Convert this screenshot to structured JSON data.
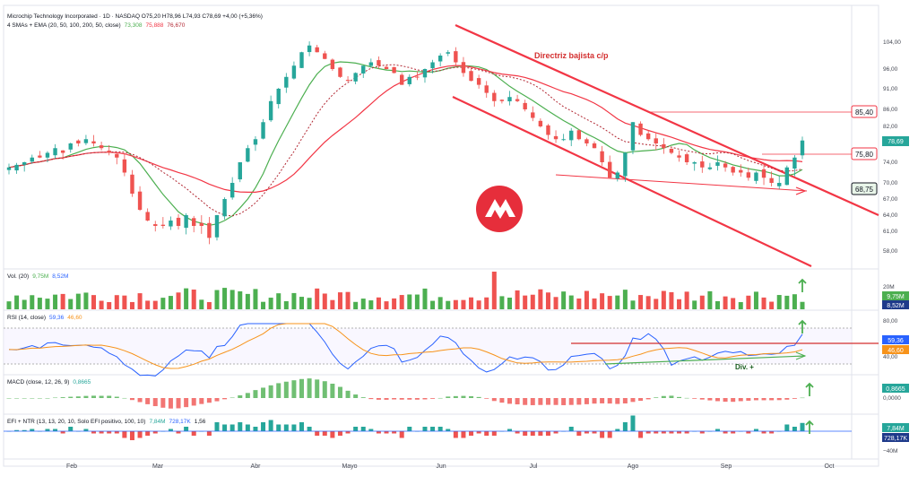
{
  "header": {
    "title_line": "Microchip Technology Incorporated · 1D · NASDAQ  O75,20  H78,96  L74,93  C78,69  +4,00 (+5,36%)",
    "ma_line": "4 SMAs + EMA (20, 50, 100, 200, 50, close)",
    "ma_vals": [
      "73,308",
      "75,888",
      "76,670"
    ]
  },
  "colors": {
    "up": "#26a69a",
    "up_vol": "#4caf50",
    "down": "#ef5350",
    "sma20": "#4caf50",
    "sma_red": "#f23645",
    "ema": "#b22833",
    "rsi": "#2962ff",
    "rsi_ma": "#f7931a",
    "arrow": "#4caf50"
  },
  "price_panel": {
    "y_ticks": [
      "104,00",
      "96,00",
      "91,00",
      "86,00",
      "82,00",
      "78,00",
      "74,00",
      "70,00",
      "67,00",
      "64,00",
      "61,00",
      "58,00"
    ],
    "labels": {
      "last": "78,69",
      "r1": "85,40",
      "r2": "75,80",
      "r3": "68,75"
    },
    "annotation": "Directriz bajista c/p"
  },
  "volume_panel": {
    "title": "Vol. (20)",
    "v1": "9,75M",
    "v2": "8,52M",
    "tick": "20M"
  },
  "rsi_panel": {
    "title": "RSI (14, close)",
    "v1": "59,36",
    "v2": "46,60",
    "ticks": [
      "80,00",
      "40,00"
    ],
    "annotation": "Div. +"
  },
  "macd_panel": {
    "title": "MACD (close, 12, 26, 9)",
    "v1": "0,8665",
    "tick": "0,0000"
  },
  "efi_panel": {
    "title": "EFI + NTR (13, 13, 20, 10, Solo EFI positivo, 100, 10)",
    "v1": "7,84M",
    "v2": "728,17K",
    "v3": "1,56",
    "tick": "−40M"
  },
  "x_axis": [
    "Feb",
    "Mar",
    "Abr",
    "Mayo",
    "Jun",
    "Jul",
    "Ago",
    "Sep",
    "Oct"
  ],
  "chart_data": {
    "type": "candlestick",
    "title": "Microchip Technology Incorporated · 1D · NASDAQ",
    "x": [
      "Feb",
      "Mar",
      "Abr",
      "Mayo",
      "Jun",
      "Jul",
      "Ago",
      "Sep",
      "Oct"
    ],
    "close_path": [
      73,
      73.5,
      74,
      75,
      75,
      76,
      77,
      76,
      78,
      78,
      79,
      78,
      77,
      76,
      75,
      72,
      68,
      65,
      63,
      62,
      62,
      63,
      62,
      64,
      62,
      62,
      60,
      64,
      67,
      70,
      74,
      77,
      79,
      83,
      88,
      91,
      94,
      97,
      101,
      103,
      101,
      99,
      96,
      94,
      93,
      95,
      97,
      98,
      97,
      96,
      95,
      92,
      94,
      94,
      96,
      98,
      100,
      101,
      98,
      95,
      93,
      92,
      90,
      88,
      88,
      89,
      88,
      86,
      84,
      82,
      80,
      79,
      79,
      81,
      79,
      78,
      77,
      74,
      71,
      72,
      76,
      83,
      80,
      79,
      78,
      77,
      76,
      75,
      74,
      74,
      73,
      73,
      74,
      73,
      72,
      72,
      71,
      72,
      71,
      70,
      70,
      73,
      75,
      78.69
    ],
    "ylim": [
      55,
      106
    ],
    "last": 78.69,
    "levels": [
      85.4,
      75.8,
      68.75
    ]
  }
}
